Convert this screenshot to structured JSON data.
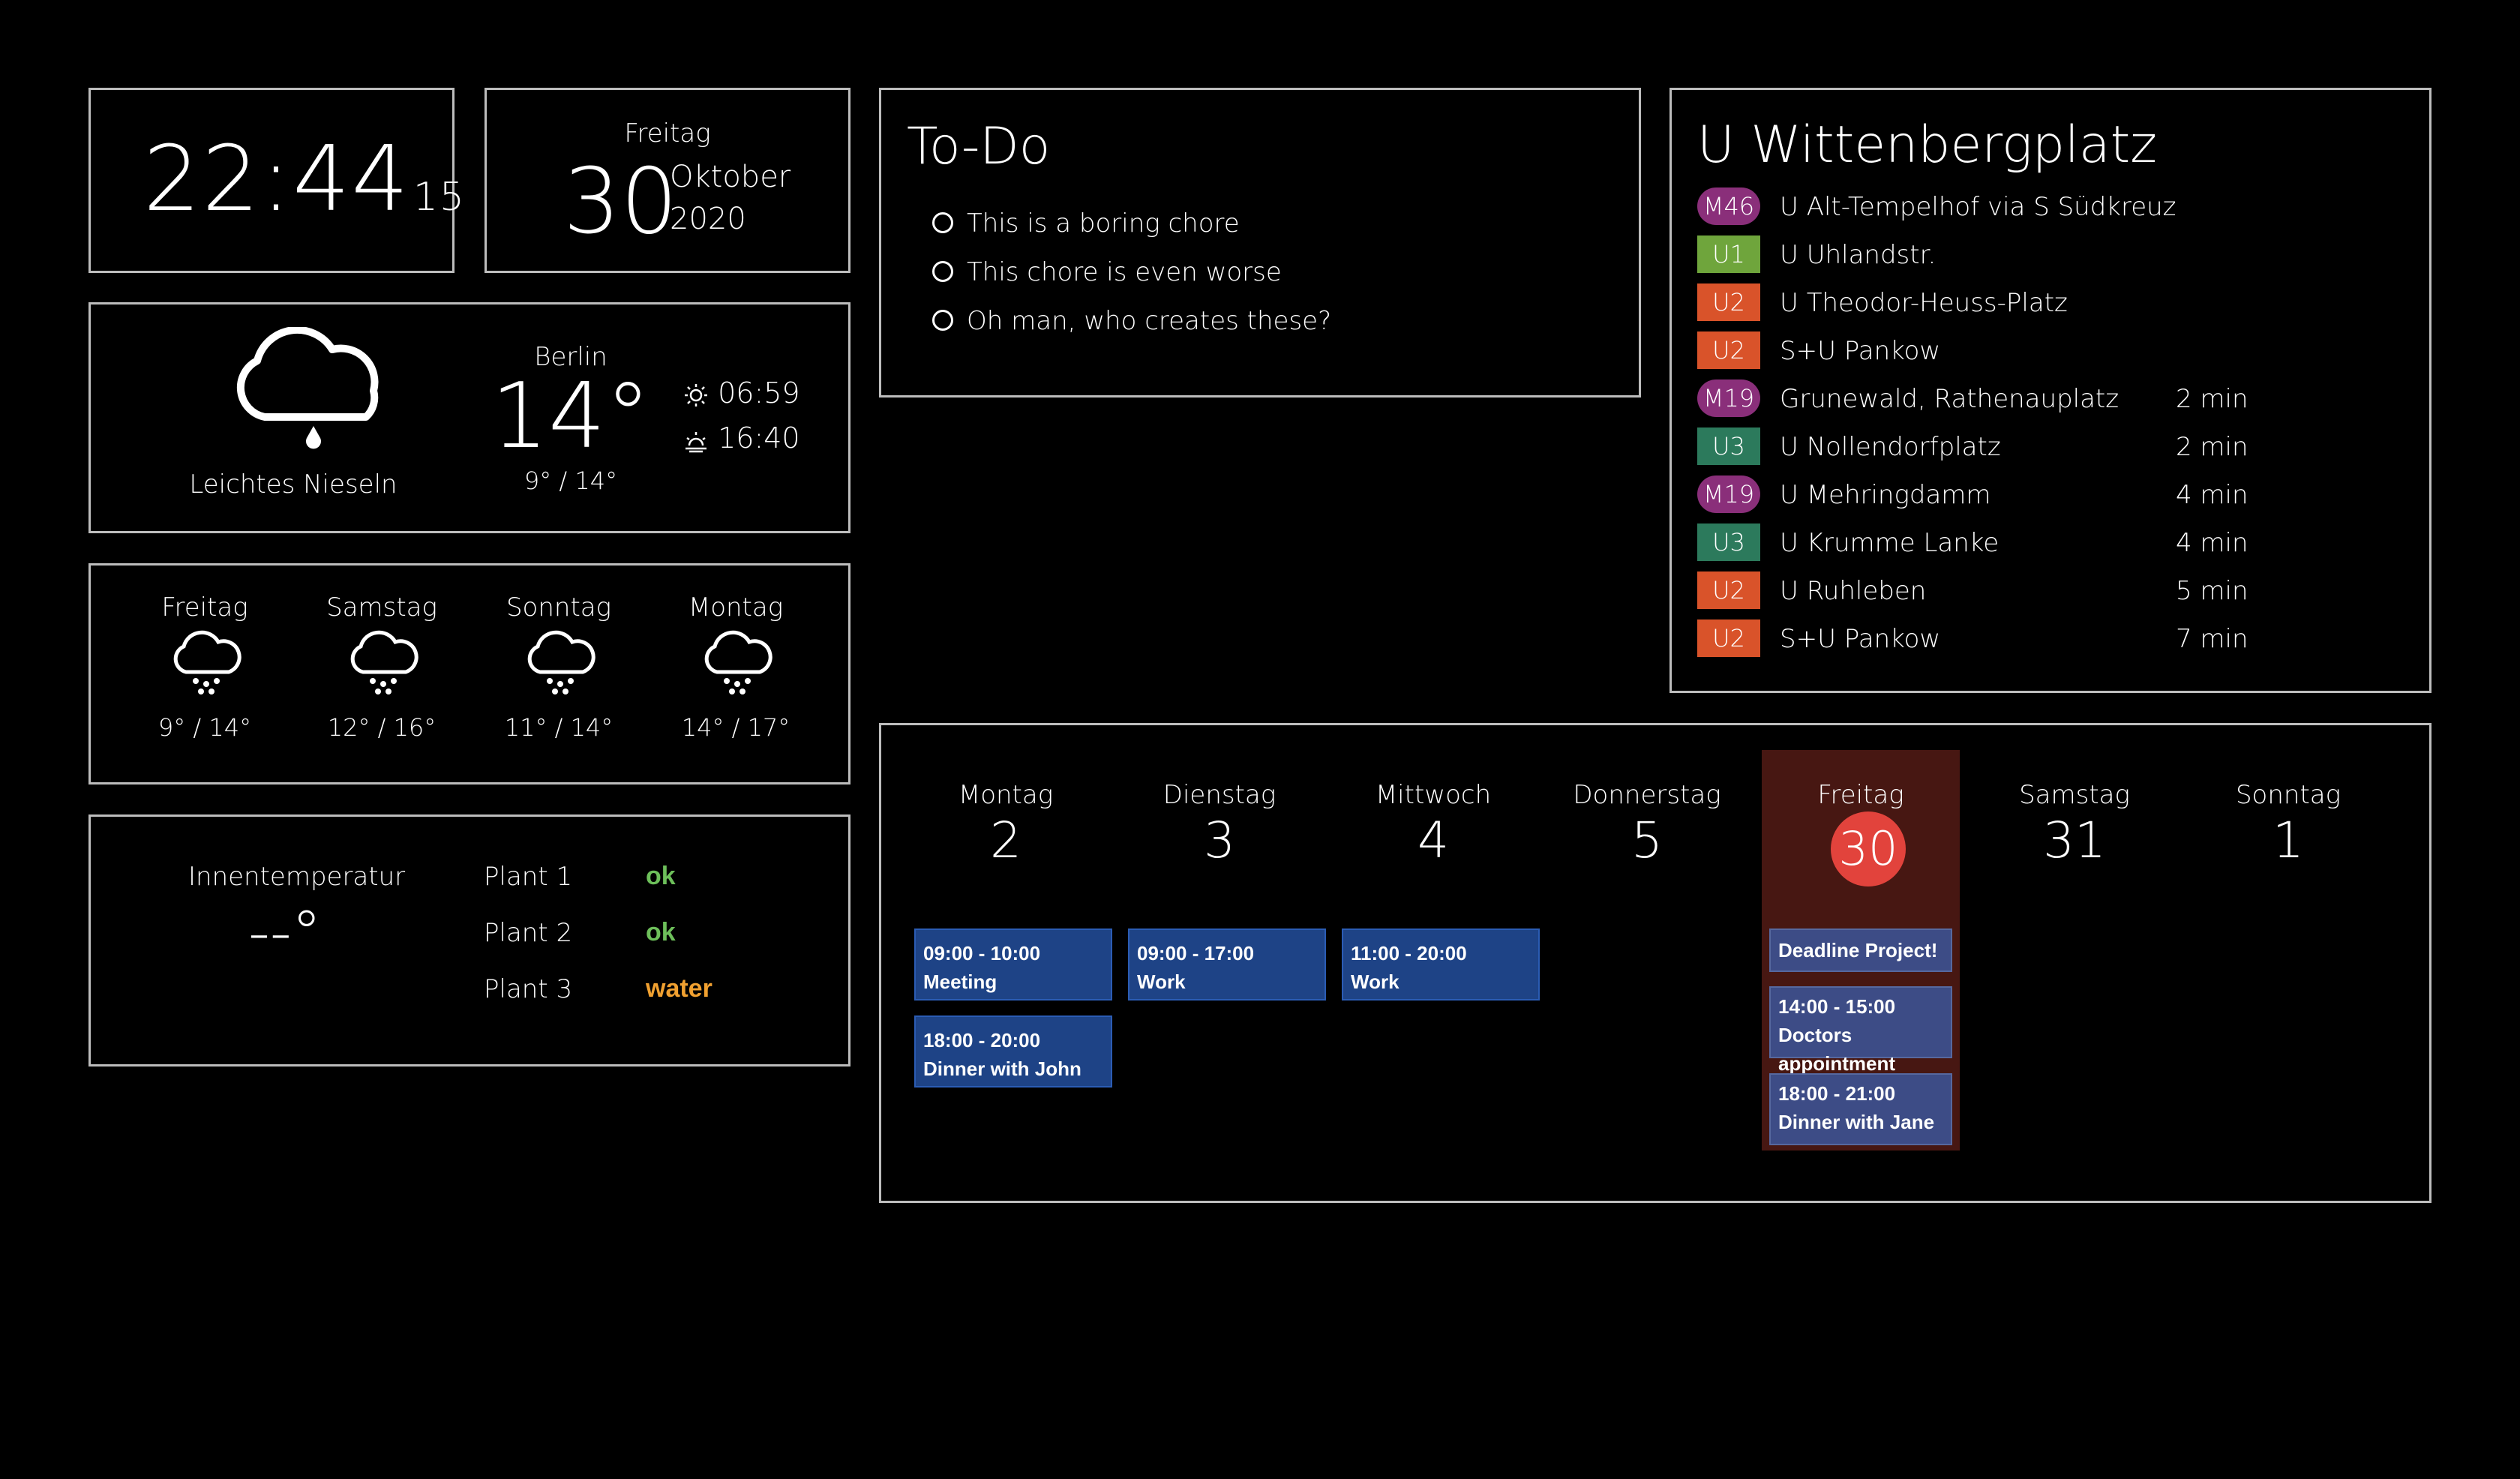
{
  "clock": {
    "time": "22:44",
    "seconds": "15"
  },
  "date": {
    "weekday": "Freitag",
    "day": "30",
    "month": "Oktober",
    "year": "2020"
  },
  "weather": {
    "description": "Leichtes Nieseln",
    "city": "Berlin",
    "temperature": "14°",
    "range": "9° / 14°",
    "sunrise": "06:59",
    "sunset": "16:40",
    "icon": "drizzle-cloud-icon"
  },
  "forecast": [
    {
      "day": "Freitag",
      "temps": "9° / 14°",
      "icon": "rain-cloud-icon"
    },
    {
      "day": "Samstag",
      "temps": "12° / 16°",
      "icon": "rain-cloud-icon"
    },
    {
      "day": "Sonntag",
      "temps": "11° / 14°",
      "icon": "rain-cloud-icon"
    },
    {
      "day": "Montag",
      "temps": "14° / 17°",
      "icon": "rain-cloud-icon"
    }
  ],
  "sensors": {
    "indoor_label": "Innentemperatur",
    "indoor_value": "--°",
    "plants": [
      {
        "name": "Plant 1",
        "status": "ok",
        "color": "#6dbf5a"
      },
      {
        "name": "Plant 2",
        "status": "ok",
        "color": "#6dbf5a"
      },
      {
        "name": "Plant 3",
        "status": "water",
        "color": "#f0a030"
      }
    ]
  },
  "todo": {
    "title": "To-Do",
    "items": [
      "This is a boring chore",
      "This chore is even worse",
      "Oh man, who creates these?"
    ]
  },
  "transit": {
    "station": "U Wittenbergplatz",
    "departures": [
      {
        "line": "M46",
        "type": "bus",
        "color": "#8a2f7a",
        "destination": "U Alt-Tempelhof via S Südkreuz",
        "minutes": ""
      },
      {
        "line": "U1",
        "type": "ubahn",
        "color": "#6fa53c",
        "destination": "U Uhlandstr.",
        "minutes": ""
      },
      {
        "line": "U2",
        "type": "ubahn",
        "color": "#d9532a",
        "destination": "U Theodor-Heuss-Platz",
        "minutes": ""
      },
      {
        "line": "U2",
        "type": "ubahn",
        "color": "#d9532a",
        "destination": "S+U Pankow",
        "minutes": ""
      },
      {
        "line": "M19",
        "type": "bus",
        "color": "#8a2f7a",
        "destination": "Grunewald, Rathenauplatz",
        "minutes": "2 min"
      },
      {
        "line": "U3",
        "type": "ubahn",
        "color": "#2c7a5c",
        "destination": "U Nollendorfplatz",
        "minutes": "2 min"
      },
      {
        "line": "M19",
        "type": "bus",
        "color": "#8a2f7a",
        "destination": "U Mehringdamm",
        "minutes": "4 min"
      },
      {
        "line": "U3",
        "type": "ubahn",
        "color": "#2c7a5c",
        "destination": "U Krumme Lanke",
        "minutes": "4 min"
      },
      {
        "line": "U2",
        "type": "ubahn",
        "color": "#d9532a",
        "destination": "U Ruhleben",
        "minutes": "5 min"
      },
      {
        "line": "U2",
        "type": "ubahn",
        "color": "#d9532a",
        "destination": "S+U Pankow",
        "minutes": "7 min"
      }
    ]
  },
  "calendar": {
    "days": [
      {
        "weekday": "Montag",
        "day": "2",
        "today": false,
        "events": [
          {
            "time": "09:00 - 10:00",
            "title": "Meeting"
          },
          {
            "time": "18:00 - 20:00",
            "title": "Dinner with John"
          }
        ]
      },
      {
        "weekday": "Dienstag",
        "day": "3",
        "today": false,
        "events": [
          {
            "time": "09:00 - 17:00",
            "title": "Work"
          }
        ]
      },
      {
        "weekday": "Mittwoch",
        "day": "4",
        "today": false,
        "events": [
          {
            "time": "11:00 - 20:00",
            "title": "Work"
          }
        ]
      },
      {
        "weekday": "Donnerstag",
        "day": "5",
        "today": false,
        "events": []
      },
      {
        "weekday": "Freitag",
        "day": "30",
        "today": true,
        "events": [
          {
            "time": "",
            "title": "Deadline Project!"
          },
          {
            "time": "14:00 - 15:00",
            "title": "Doctors appointment"
          },
          {
            "time": "18:00 - 21:00",
            "title": "Dinner with Jane"
          }
        ]
      },
      {
        "weekday": "Samstag",
        "day": "31",
        "today": false,
        "events": []
      },
      {
        "weekday": "Sonntag",
        "day": "1",
        "today": false,
        "events": []
      }
    ],
    "today_color": "#e2433c"
  }
}
